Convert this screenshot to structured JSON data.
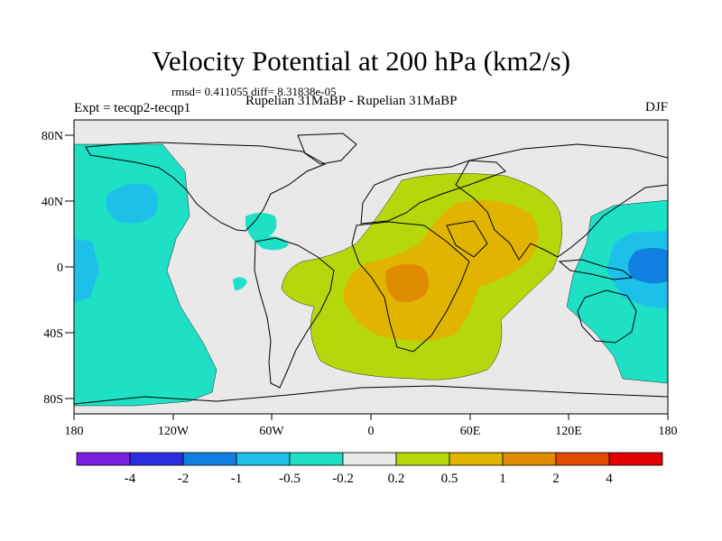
{
  "header": {
    "title": "Velocity Potential at 200 hPa (km2/s)",
    "stats": "rmsd= 0.411055 diff= 8.31838e-05",
    "experiment": "Expt = tecqp2-tecqp1",
    "cases": "Rupelian  31MaBP - Rupelian  31MaBP",
    "season": "DJF"
  },
  "axes": {
    "lat_ticks": [
      {
        "label": "80N",
        "value": 80
      },
      {
        "label": "40N",
        "value": 40
      },
      {
        "label": "0",
        "value": 0
      },
      {
        "label": "40S",
        "value": -40
      },
      {
        "label": "80S",
        "value": -80
      }
    ],
    "lon_ticks": [
      {
        "label": "180",
        "value": -180
      },
      {
        "label": "120W",
        "value": -120
      },
      {
        "label": "60W",
        "value": -60
      },
      {
        "label": "0",
        "value": 0
      },
      {
        "label": "60E",
        "value": 60
      },
      {
        "label": "120E",
        "value": 120
      },
      {
        "label": "180",
        "value": 180
      }
    ]
  },
  "colorbar": {
    "colors": [
      "#7a1fe0",
      "#2a2ee0",
      "#0f80e0",
      "#1cc0e8",
      "#1de0c4",
      "#e9e9e9",
      "#b5d80d",
      "#e0b400",
      "#e08c00",
      "#e04a00",
      "#e00000"
    ],
    "labels": [
      "-4",
      "-2",
      "-1",
      "-0.5",
      "-0.2",
      "0.2",
      "0.5",
      "1",
      "2",
      "4"
    ]
  },
  "palette": {
    "neutral": "#e9e9e9",
    "neg_02": "#1de0c4",
    "neg_05": "#1cc0e8",
    "neg_1": "#0f80e0",
    "pos_02": "#b5d80d",
    "pos_05": "#e0b400",
    "pos_1": "#e08c00"
  }
}
